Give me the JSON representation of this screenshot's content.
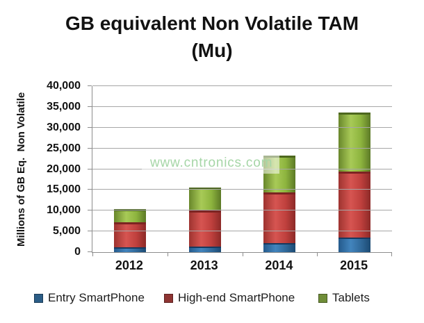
{
  "title_line1": "GB equivalent Non Volatile TAM",
  "title_line2": "(Mu)",
  "watermark": "www.cntronics.com",
  "chart_data": {
    "type": "bar",
    "stacked": true,
    "title": "GB equivalent Non Volatile TAM (Mu)",
    "ylabel": "Millions of GB Eq.  Non Volatile",
    "xlabel": "",
    "categories": [
      "2012",
      "2013",
      "2014",
      "2015"
    ],
    "series": [
      {
        "name": "Entry SmartPhone",
        "color": "#2d6395",
        "legend_color": "#2b5d86",
        "values": [
          1100,
          1400,
          2200,
          3500
        ]
      },
      {
        "name": "High-end SmartPhone",
        "color": "#bf4341",
        "legend_color": "#8e3432",
        "values": [
          6100,
          8600,
          12200,
          15900
        ]
      },
      {
        "name": "Tablets",
        "color": "#8aad3f",
        "legend_color": "#6f8d38",
        "values": [
          3150,
          5600,
          8800,
          14300
        ]
      }
    ],
    "totals": [
      10350,
      15600,
      23200,
      33700
    ],
    "ylim": [
      0,
      40000
    ],
    "ytick_step": 5000,
    "ytick_labels": [
      "0",
      "5,000",
      "10,000",
      "15,000",
      "20,000",
      "25,000",
      "30,000",
      "35,000",
      "40,000"
    ],
    "grid": true,
    "legend_position": "bottom",
    "gridline_color": "#a6a6a6",
    "axis_color": "#8c8c8c"
  }
}
